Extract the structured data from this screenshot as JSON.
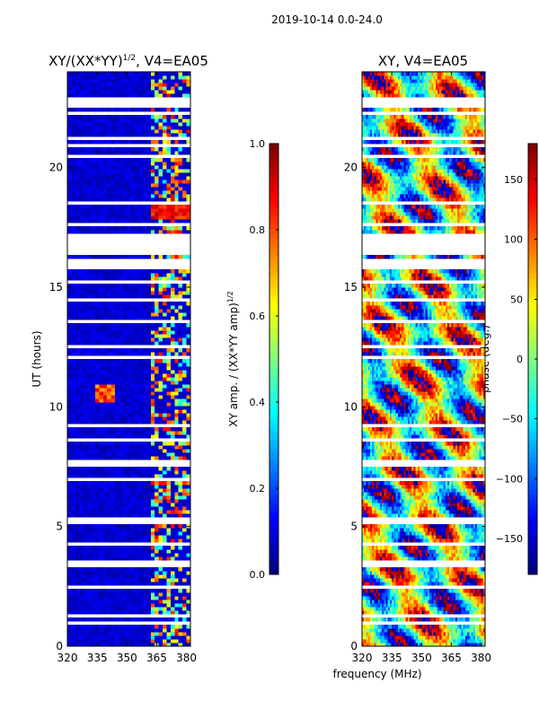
{
  "figure": {
    "suptitle": "2019-10-14 0.0-24.0",
    "shared_xlabel": "frequency (MHz)"
  },
  "chart_data": [
    {
      "type": "heatmap",
      "title_main": "XY/(XX*YY)",
      "title_exponent": "1/2",
      "title_suffix": ", V4=EA05",
      "xlabel": "",
      "ylabel": "UT (hours)",
      "xlim": [
        320,
        382
      ],
      "ylim": [
        0,
        24
      ],
      "x_ticks": [
        320,
        335,
        350,
        365,
        380
      ],
      "y_ticks": [
        0,
        5,
        10,
        15,
        20
      ],
      "colorbar": {
        "label_main": "XY amp. / (XX*YY amp)",
        "label_exponent": "1/2",
        "range": [
          0.0,
          1.0
        ],
        "ticks": [
          "0.0",
          "0.2",
          "0.4",
          "0.6",
          "0.8",
          "1.0"
        ],
        "tick_values": [
          0.0,
          0.2,
          0.4,
          0.6,
          0.8,
          1.0
        ],
        "colormap": "jet"
      },
      "data_gaps_hours": [
        [
          0.55,
          0.65
        ],
        [
          0.9,
          1.0
        ],
        [
          1.25,
          1.35
        ],
        [
          1.6,
          1.7
        ],
        [
          2.45,
          2.55
        ],
        [
          2.95,
          3.05
        ],
        [
          3.3,
          3.55
        ],
        [
          4.2,
          4.3
        ],
        [
          4.6,
          4.7
        ],
        [
          5.1,
          5.4
        ],
        [
          5.95,
          6.05
        ],
        [
          6.4,
          6.5
        ],
        [
          6.95,
          7.05
        ],
        [
          7.55,
          7.75
        ],
        [
          8.6,
          8.7
        ],
        [
          9.15,
          9.3
        ],
        [
          9.7,
          9.8
        ],
        [
          11.2,
          11.3
        ],
        [
          12.0,
          12.1
        ],
        [
          12.5,
          12.6
        ],
        [
          13.0,
          13.1
        ],
        [
          13.5,
          13.6
        ],
        [
          14.4,
          14.5
        ],
        [
          15.1,
          15.3
        ],
        [
          15.8,
          16.2
        ],
        [
          16.3,
          17.3
        ],
        [
          17.6,
          17.7
        ],
        [
          18.5,
          18.6
        ],
        [
          19.0,
          19.1
        ],
        [
          19.6,
          19.7
        ],
        [
          20.4,
          20.5
        ],
        [
          20.9,
          21.0
        ],
        [
          21.2,
          21.3
        ],
        [
          22.2,
          22.4
        ],
        [
          22.5,
          23.0
        ],
        [
          23.5,
          23.6
        ]
      ],
      "features": [
        {
          "note": "dominant low amplitude (~0.05-0.15) across most of the band"
        },
        {
          "note": "interference stripes near 362-381 MHz with amplitude ~0.4-0.9"
        },
        {
          "note": "hot spot near 338 MHz at 10.5 hours, amplitude ~0.8"
        }
      ]
    },
    {
      "type": "heatmap",
      "title_main": "XY, V4=EA05",
      "xlabel": "frequency (MHz)",
      "ylabel": "",
      "xlim": [
        320,
        382
      ],
      "ylim": [
        0,
        24
      ],
      "x_ticks": [
        320,
        335,
        350,
        365,
        380
      ],
      "y_ticks": [
        0,
        5,
        10,
        15,
        20
      ],
      "colorbar": {
        "label_main": "phase (deg.)",
        "range": [
          -180,
          180
        ],
        "ticks": [
          "−150",
          "−100",
          "−50",
          "0",
          "50",
          "100",
          "150"
        ],
        "tick_values": [
          -150,
          -100,
          -50,
          0,
          50,
          100,
          150
        ],
        "colormap": "jet"
      },
      "data_gaps_hours": [
        [
          0.55,
          0.65
        ],
        [
          0.9,
          1.0
        ],
        [
          1.25,
          1.35
        ],
        [
          1.6,
          1.7
        ],
        [
          2.45,
          2.55
        ],
        [
          2.95,
          3.05
        ],
        [
          3.3,
          3.55
        ],
        [
          4.2,
          4.3
        ],
        [
          4.6,
          4.7
        ],
        [
          5.1,
          5.4
        ],
        [
          5.95,
          6.05
        ],
        [
          6.4,
          6.5
        ],
        [
          6.95,
          7.05
        ],
        [
          7.55,
          7.75
        ],
        [
          8.6,
          8.7
        ],
        [
          9.15,
          9.3
        ],
        [
          9.7,
          9.8
        ],
        [
          11.2,
          11.3
        ],
        [
          12.0,
          12.1
        ],
        [
          12.5,
          12.6
        ],
        [
          13.0,
          13.1
        ],
        [
          13.5,
          13.6
        ],
        [
          14.4,
          14.5
        ],
        [
          15.1,
          15.3
        ],
        [
          15.8,
          16.2
        ],
        [
          16.3,
          17.3
        ],
        [
          17.6,
          17.7
        ],
        [
          18.5,
          18.6
        ],
        [
          19.0,
          19.1
        ],
        [
          19.6,
          19.7
        ],
        [
          20.4,
          20.5
        ],
        [
          20.9,
          21.0
        ],
        [
          21.2,
          21.3
        ],
        [
          22.2,
          22.4
        ],
        [
          22.5,
          23.0
        ],
        [
          23.5,
          23.6
        ]
      ],
      "features": [
        {
          "note": "phase wraps across full -180..180 range with banded structure"
        }
      ]
    }
  ]
}
